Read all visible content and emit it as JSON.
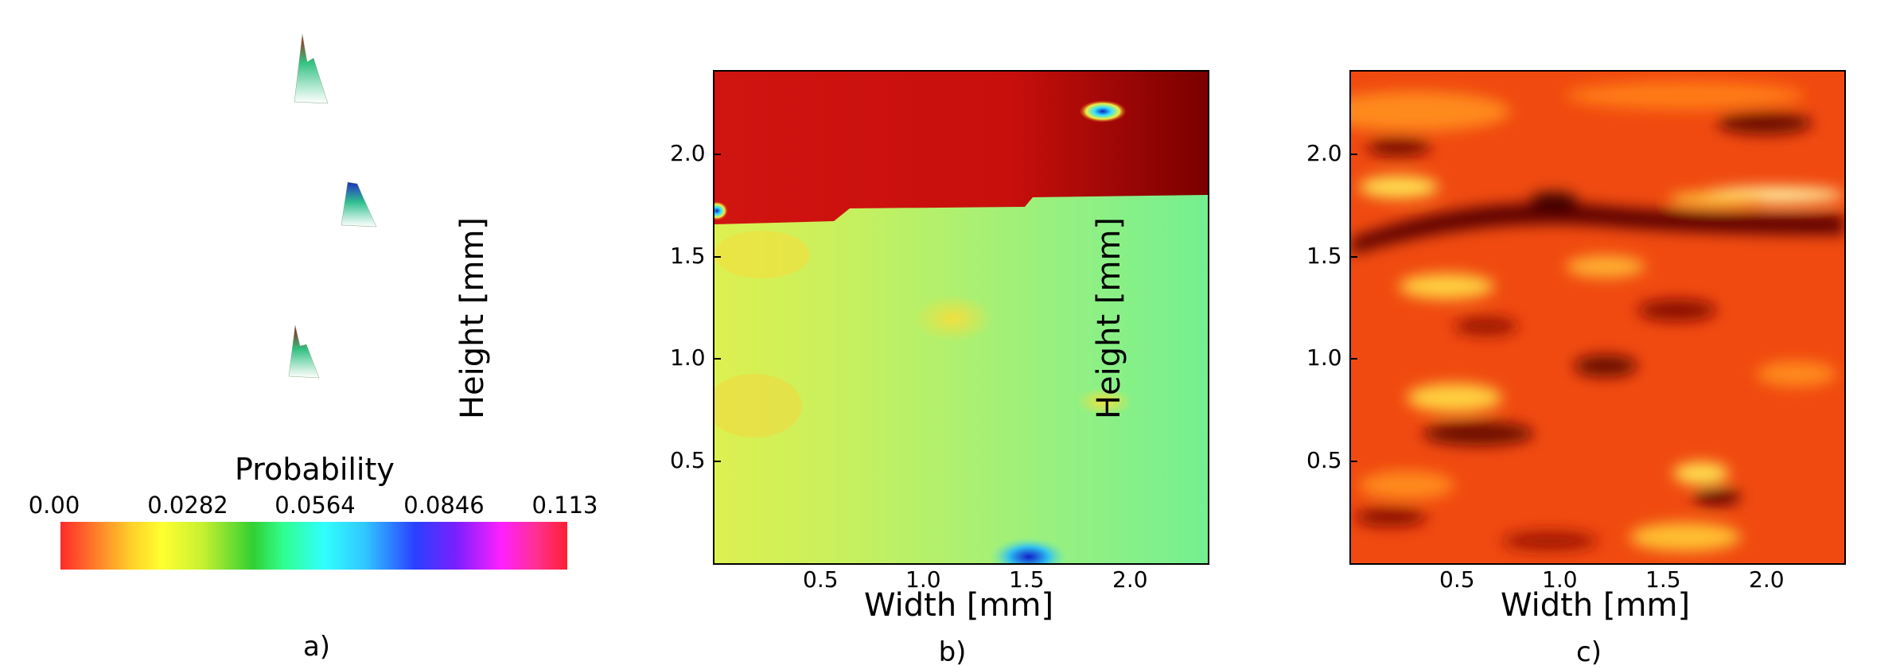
{
  "chart_data": [
    {
      "panel": "a)",
      "type": "other",
      "description_kind": "3d-probability-peaks",
      "colorbar": {
        "title": "Probability",
        "ticks": [
          "0.00",
          "0.0282",
          "0.0564",
          "0.0846",
          "0.113"
        ],
        "range": [
          0,
          0.113
        ]
      }
    },
    {
      "panel": "b)",
      "type": "heatmap",
      "xlabel": "Width [mm]",
      "ylabel": "Height [mm]",
      "xticks": [
        "0.5",
        "1.0",
        "1.5",
        "2.0"
      ],
      "yticks": [
        "0.5",
        "1.0",
        "1.5",
        "2.0"
      ],
      "xlim": [
        0,
        2.4
      ],
      "ylim": [
        0,
        2.4
      ]
    },
    {
      "panel": "c)",
      "type": "heatmap",
      "xlabel": "Width [mm]",
      "ylabel": "Height [mm]",
      "xticks": [
        "0.5",
        "1.0",
        "1.5",
        "2.0"
      ],
      "yticks": [
        "0.5",
        "1.0",
        "1.5",
        "2.0"
      ],
      "xlim": [
        0,
        2.4
      ],
      "ylim": [
        0,
        2.4
      ]
    }
  ],
  "colors": {
    "dark_red": "#b00000",
    "red": "#e01a10",
    "green_yellow": "#b8f050",
    "teal_green": "#70f090",
    "orange": "#f05010",
    "yellow": "#ffe040"
  }
}
